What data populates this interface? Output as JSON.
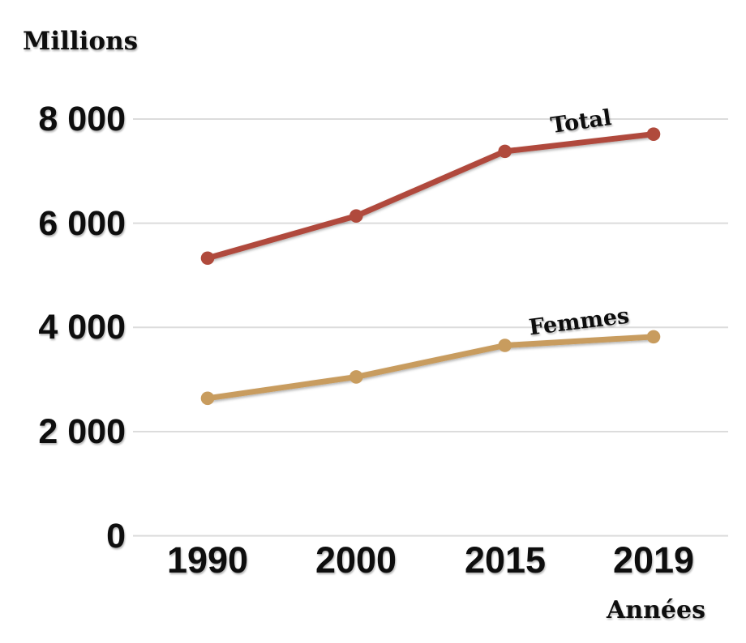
{
  "page": {
    "background": "#ffffff",
    "text_color": "#0e0e0e"
  },
  "chart_data": {
    "type": "line",
    "title": "",
    "y_axis_title": "Millions",
    "x_axis_title": "Années",
    "categories": [
      "1990",
      "2000",
      "2015",
      "2019"
    ],
    "series": [
      {
        "name": "Total",
        "color": "#b04a3c",
        "values": [
          5330,
          6140,
          7380,
          7710
        ]
      },
      {
        "name": "Femmes",
        "color": "#c89c5e",
        "values": [
          2640,
          3050,
          3655,
          3820
        ]
      }
    ],
    "y_ticks": [
      {
        "value": 0,
        "label": "0"
      },
      {
        "value": 2000,
        "label": "2 000"
      },
      {
        "value": 4000,
        "label": "4 000"
      },
      {
        "value": 6000,
        "label": "6 000"
      },
      {
        "value": 8000,
        "label": "8 000"
      }
    ],
    "ylim": [
      0,
      8000
    ],
    "grid": true,
    "gridline_color": "#dcdcdc",
    "legend": "inline-series-labels",
    "marker": "circle"
  }
}
